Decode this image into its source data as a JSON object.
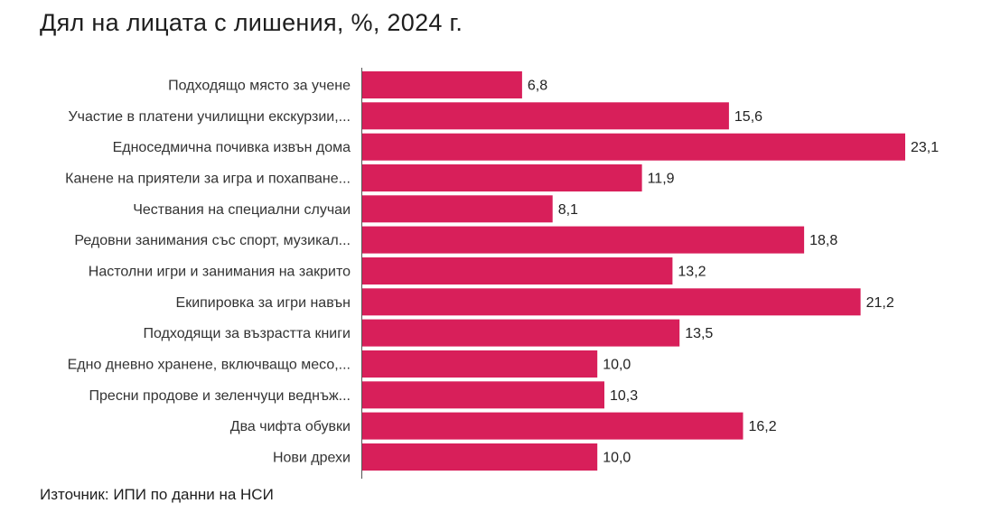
{
  "chart_data": {
    "type": "bar",
    "orientation": "horizontal",
    "title": "Дял на лицата с лишения, %, 2024 г.",
    "categories": [
      "Подходящо място за учене",
      "Участие в платени училищни екскурзии,...",
      "Едноседмична почивка извън дома",
      "Канене на приятели за игра и похапване...",
      "Чествания на специални случаи",
      "Редовни занимания със спорт, музикал...",
      "Настолни игри и занимания на закрито",
      "Екипировка за игри навън",
      "Подходящи за възрастта книги",
      "Едно дневно хранене, включващо месо,...",
      "Пресни продове и зеленчуци веднъж...",
      "Два чифта обувки",
      "Нови дрехи"
    ],
    "values": [
      6.8,
      15.6,
      23.1,
      11.9,
      8.1,
      18.8,
      13.2,
      21.2,
      13.5,
      10.0,
      10.3,
      16.2,
      10.0
    ],
    "value_labels": [
      "6,8",
      "15,6",
      "23,1",
      "11,9",
      "8,1",
      "18,8",
      "13,2",
      "21,2",
      "13,5",
      "10,0",
      "10,3",
      "16,2",
      "10,0"
    ],
    "xlim": [
      0,
      23.1
    ],
    "grid": false,
    "bar_color": "#d81f5a",
    "axis_color": "#555555"
  },
  "source": "Източник: ИПИ по данни на НСИ"
}
